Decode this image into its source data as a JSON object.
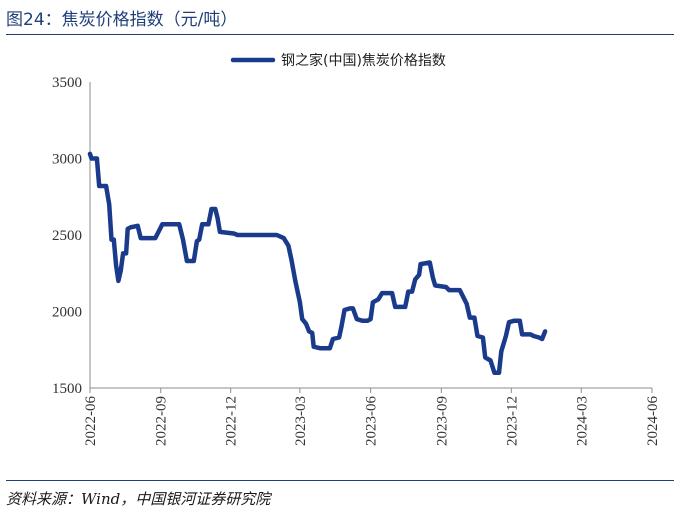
{
  "header": {
    "title": "图24：焦炭价格指数（元/吨）"
  },
  "footer": {
    "source": "资料来源：Wind，中国银河证券研究院"
  },
  "colors": {
    "line": "#1a3a8c",
    "title": "#1f3f7a"
  },
  "chart_data": {
    "type": "line",
    "title": "",
    "xlabel": "",
    "ylabel": "",
    "ylim": [
      1500,
      3500
    ],
    "yticks": [
      1500,
      2000,
      2500,
      3000,
      3500
    ],
    "xticks": [
      "2022-06",
      "2022-09",
      "2022-12",
      "2023-03",
      "2023-06",
      "2023-09",
      "2023-12",
      "2024-03",
      "2024-06"
    ],
    "legend": {
      "position": "top-center"
    },
    "grid": false,
    "series": [
      {
        "name": "钢之家(中国)焦炭价格指数",
        "points": [
          [
            "2022-06-01",
            3030
          ],
          [
            "2022-06-03",
            3000
          ],
          [
            "2022-06-10",
            3000
          ],
          [
            "2022-06-13",
            2820
          ],
          [
            "2022-06-22",
            2820
          ],
          [
            "2022-06-26",
            2700
          ],
          [
            "2022-06-29",
            2470
          ],
          [
            "2022-07-02",
            2470
          ],
          [
            "2022-07-05",
            2300
          ],
          [
            "2022-07-08",
            2200
          ],
          [
            "2022-07-11",
            2270
          ],
          [
            "2022-07-14",
            2380
          ],
          [
            "2022-07-18",
            2380
          ],
          [
            "2022-07-20",
            2540
          ],
          [
            "2022-07-24",
            2550
          ],
          [
            "2022-08-02",
            2560
          ],
          [
            "2022-08-06",
            2480
          ],
          [
            "2022-08-25",
            2480
          ],
          [
            "2022-08-31",
            2540
          ],
          [
            "2022-09-03",
            2570
          ],
          [
            "2022-09-25",
            2570
          ],
          [
            "2022-09-30",
            2470
          ],
          [
            "2022-10-05",
            2330
          ],
          [
            "2022-10-14",
            2330
          ],
          [
            "2022-10-18",
            2460
          ],
          [
            "2022-10-21",
            2470
          ],
          [
            "2022-10-25",
            2570
          ],
          [
            "2022-11-02",
            2570
          ],
          [
            "2022-11-06",
            2670
          ],
          [
            "2022-11-11",
            2670
          ],
          [
            "2022-11-14",
            2610
          ],
          [
            "2022-11-17",
            2520
          ],
          [
            "2022-12-05",
            2510
          ],
          [
            "2022-12-10",
            2500
          ],
          [
            "2022-12-26",
            2500
          ],
          [
            "2022-12-29",
            2500
          ],
          [
            "2023-01-30",
            2500
          ],
          [
            "2023-02-08",
            2480
          ],
          [
            "2023-02-14",
            2430
          ],
          [
            "2023-02-18",
            2340
          ],
          [
            "2023-02-23",
            2200
          ],
          [
            "2023-03-01",
            2060
          ],
          [
            "2023-03-04",
            1950
          ],
          [
            "2023-03-09",
            1920
          ],
          [
            "2023-03-13",
            1870
          ],
          [
            "2023-03-17",
            1860
          ],
          [
            "2023-03-19",
            1770
          ],
          [
            "2023-03-27",
            1760
          ],
          [
            "2023-04-06",
            1760
          ],
          [
            "2023-04-09",
            1760
          ],
          [
            "2023-04-13",
            1820
          ],
          [
            "2023-04-21",
            1830
          ],
          [
            "2023-04-24",
            1900
          ],
          [
            "2023-04-28",
            2010
          ],
          [
            "2023-05-05",
            2020
          ],
          [
            "2023-05-09",
            2020
          ],
          [
            "2023-05-14",
            1950
          ],
          [
            "2023-05-21",
            1940
          ],
          [
            "2023-05-28",
            1940
          ],
          [
            "2023-06-01",
            1950
          ],
          [
            "2023-06-04",
            2060
          ],
          [
            "2023-06-11",
            2080
          ],
          [
            "2023-06-16",
            2120
          ],
          [
            "2023-06-29",
            2120
          ],
          [
            "2023-07-03",
            2030
          ],
          [
            "2023-07-16",
            2030
          ],
          [
            "2023-07-20",
            2130
          ],
          [
            "2023-07-25",
            2130
          ],
          [
            "2023-07-29",
            2210
          ],
          [
            "2023-08-03",
            2240
          ],
          [
            "2023-08-05",
            2310
          ],
          [
            "2023-08-17",
            2320
          ],
          [
            "2023-08-21",
            2220
          ],
          [
            "2023-08-24",
            2170
          ],
          [
            "2023-09-07",
            2160
          ],
          [
            "2023-09-11",
            2140
          ],
          [
            "2023-09-25",
            2140
          ],
          [
            "2023-10-04",
            2050
          ],
          [
            "2023-10-08",
            1960
          ],
          [
            "2023-10-14",
            1960
          ],
          [
            "2023-10-18",
            1840
          ],
          [
            "2023-10-25",
            1830
          ],
          [
            "2023-10-28",
            1700
          ],
          [
            "2023-11-04",
            1680
          ],
          [
            "2023-11-09",
            1600
          ],
          [
            "2023-11-15",
            1600
          ],
          [
            "2023-11-18",
            1740
          ],
          [
            "2023-11-24",
            1840
          ],
          [
            "2023-11-28",
            1930
          ],
          [
            "2023-12-05",
            1940
          ],
          [
            "2023-12-12",
            1940
          ],
          [
            "2023-12-15",
            1850
          ],
          [
            "2023-12-26",
            1850
          ],
          [
            "2023-12-30",
            1840
          ],
          [
            "2024-01-06",
            1830
          ],
          [
            "2024-01-10",
            1820
          ],
          [
            "2024-01-14",
            1870
          ]
        ]
      }
    ]
  }
}
